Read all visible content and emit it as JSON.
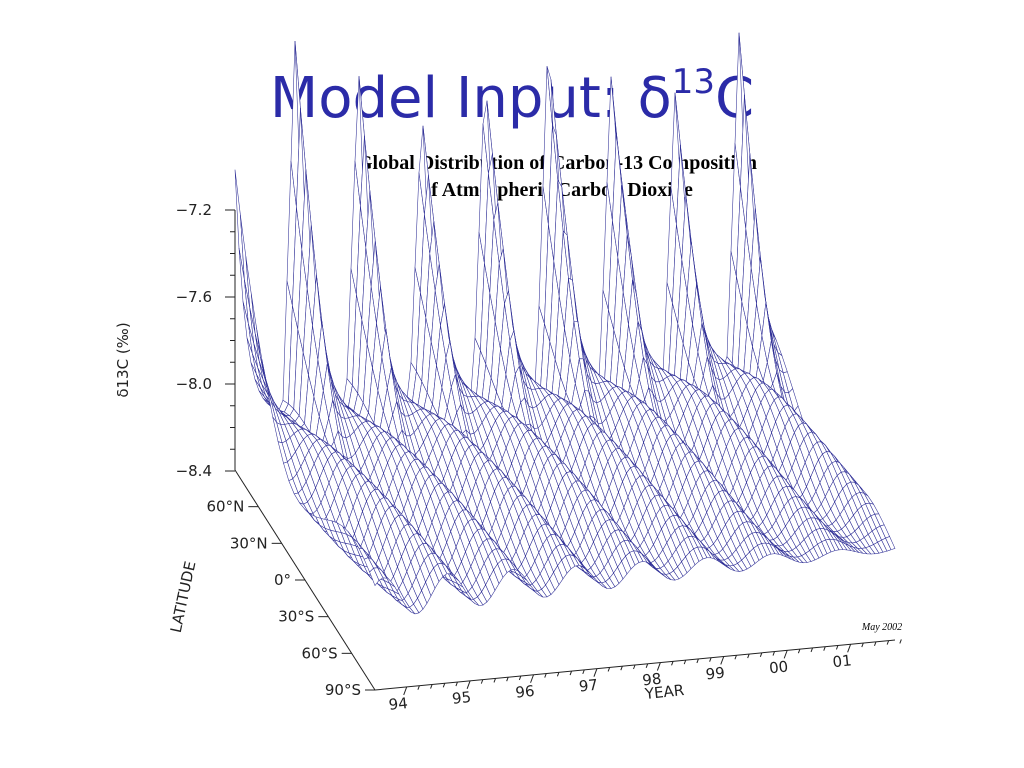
{
  "slide": {
    "title": "Model Input: δ",
    "title_sup": "13",
    "title_end": "C"
  },
  "figure": {
    "title_line1": "Global Distribution of Carbon-13 Composition",
    "title_line2": "of Atmospheric Carbon Dioxide",
    "z_label": "δ13C (‰)",
    "z_ticks": [
      "−7.2",
      "−7.6",
      "−8.0",
      "−8.4"
    ],
    "lat_label": "LATITUDE",
    "lat_ticks": [
      "60°N",
      "30°N",
      "0°",
      "30°S",
      "60°S",
      "90°S"
    ],
    "year_label": "YEAR",
    "year_ticks": [
      "94",
      "95",
      "96",
      "97",
      "98",
      "99",
      "00",
      "01"
    ],
    "stamp": "May 2002"
  }
}
